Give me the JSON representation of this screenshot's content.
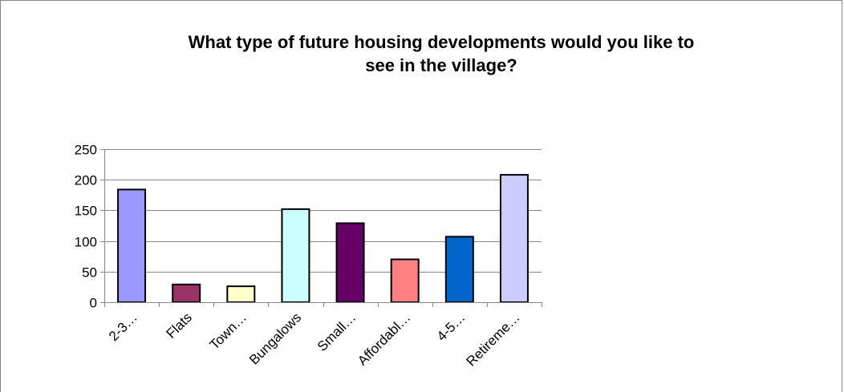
{
  "chart_data": {
    "type": "bar",
    "title_lines": [
      "What type of future housing developments would you like to",
      "see in the village?"
    ],
    "categories": [
      "2-3…",
      "Flats",
      "Town…",
      "Bungalows",
      "Small…",
      "Affordabl…",
      "4-5…",
      "Retireme…"
    ],
    "values": [
      184,
      29,
      26,
      152,
      129,
      70,
      107,
      208
    ],
    "bar_colors": [
      "#9999ff",
      "#993366",
      "#ffffcc",
      "#ccffff",
      "#660066",
      "#ff8080",
      "#0066cc",
      "#ccccff"
    ],
    "ylim": [
      0,
      250
    ],
    "yticks": [
      0,
      50,
      100,
      150,
      200,
      250
    ],
    "grid": true,
    "legend": "none"
  }
}
